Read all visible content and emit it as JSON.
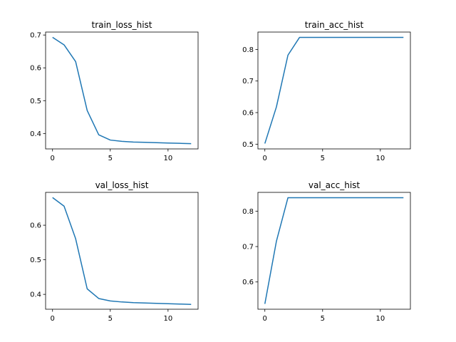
{
  "chart_data": [
    {
      "type": "line",
      "title": "train_loss_hist",
      "x": [
        0,
        1,
        2,
        3,
        4,
        5,
        6,
        7,
        8,
        9,
        10,
        11,
        12
      ],
      "series": [
        {
          "values": [
            0.693,
            0.67,
            0.619,
            0.47,
            0.396,
            0.38,
            0.376,
            0.374,
            0.373,
            0.372,
            0.371,
            0.37,
            0.369
          ]
        }
      ],
      "xlim": [
        -0.6,
        12.6
      ],
      "ylim": [
        0.353,
        0.709
      ],
      "xticks": [
        0,
        5,
        10
      ],
      "yticks": [
        0.4,
        0.5,
        0.6,
        0.7
      ],
      "color": "#1f77b4"
    },
    {
      "type": "line",
      "title": "train_acc_hist",
      "x": [
        0,
        1,
        2,
        3,
        4,
        5,
        6,
        7,
        8,
        9,
        10,
        11,
        12
      ],
      "series": [
        {
          "values": [
            0.502,
            0.618,
            0.782,
            0.838,
            0.838,
            0.838,
            0.838,
            0.838,
            0.838,
            0.838,
            0.838,
            0.838,
            0.838
          ]
        }
      ],
      "xlim": [
        -0.6,
        12.6
      ],
      "ylim": [
        0.485,
        0.855
      ],
      "xticks": [
        0,
        5,
        10
      ],
      "yticks": [
        0.5,
        0.6,
        0.7,
        0.8
      ],
      "color": "#1f77b4"
    },
    {
      "type": "line",
      "title": "val_loss_hist",
      "x": [
        0,
        1,
        2,
        3,
        4,
        5,
        6,
        7,
        8,
        9,
        10,
        11,
        12
      ],
      "series": [
        {
          "values": [
            0.68,
            0.655,
            0.561,
            0.416,
            0.388,
            0.381,
            0.378,
            0.376,
            0.375,
            0.374,
            0.373,
            0.372,
            0.371
          ]
        }
      ],
      "xlim": [
        -0.6,
        12.6
      ],
      "ylim": [
        0.357,
        0.695
      ],
      "xticks": [
        0,
        5,
        10
      ],
      "yticks": [
        0.4,
        0.5,
        0.6
      ],
      "color": "#1f77b4"
    },
    {
      "type": "line",
      "title": "val_acc_hist",
      "x": [
        0,
        1,
        2,
        3,
        4,
        5,
        6,
        7,
        8,
        9,
        10,
        11,
        12
      ],
      "series": [
        {
          "values": [
            0.538,
            0.715,
            0.838,
            0.838,
            0.838,
            0.838,
            0.838,
            0.838,
            0.838,
            0.838,
            0.838,
            0.838,
            0.838
          ]
        }
      ],
      "xlim": [
        -0.6,
        12.6
      ],
      "ylim": [
        0.523,
        0.853
      ],
      "xticks": [
        0,
        5,
        10
      ],
      "yticks": [
        0.6,
        0.7,
        0.8
      ],
      "color": "#1f77b4"
    }
  ]
}
